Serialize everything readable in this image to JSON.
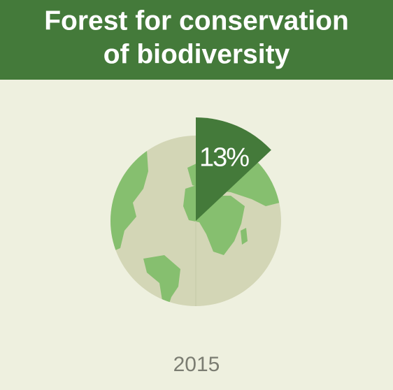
{
  "chart_data": {
    "type": "pie",
    "title": [
      "Forest for conservation",
      "of biodiversity"
    ],
    "categories": [
      "2015"
    ],
    "values": [
      13
    ],
    "value_labels": [
      "13%"
    ],
    "color": "#447a3a"
  }
}
